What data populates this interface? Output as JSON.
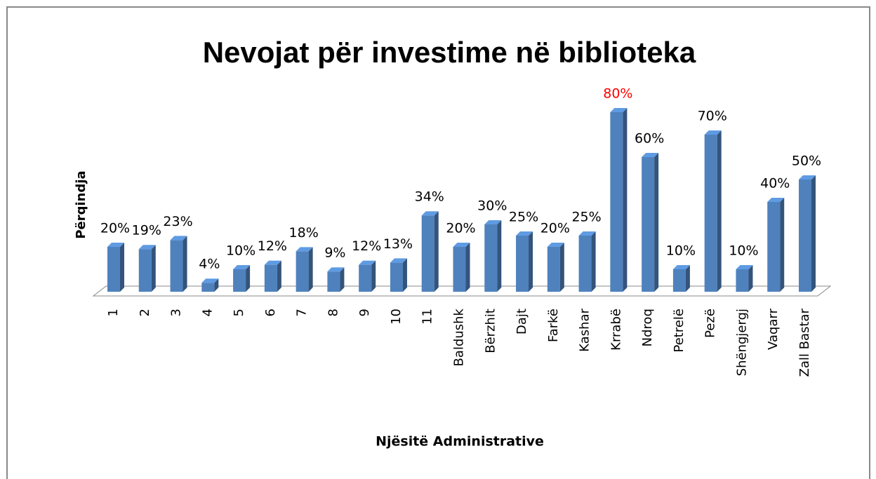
{
  "chart_data": {
    "type": "bar",
    "title": "Nevojat për investime në biblioteka",
    "y_label": "Përqindja",
    "x_label": "Njësitë Administrative",
    "categories": [
      "1",
      "2",
      "3",
      "4",
      "5",
      "6",
      "7",
      "8",
      "9",
      "10",
      "11",
      "Baldushk",
      "Bërzhit",
      "Dajt",
      "Farkë",
      "Kashar",
      "Krrabë",
      "Ndroq",
      "Petrelë",
      "Pezë",
      "Shëngjergj",
      "Vaqarr",
      "Zall Bastar"
    ],
    "values": [
      20,
      19,
      23,
      4,
      10,
      12,
      18,
      9,
      12,
      13,
      34,
      20,
      30,
      25,
      20,
      25,
      80,
      60,
      10,
      70,
      10,
      40,
      50
    ],
    "value_labels": [
      "20%",
      "19%",
      "23%",
      "4%",
      "10%",
      "12%",
      "18%",
      "9%",
      "12%",
      "13%",
      "34%",
      "20%",
      "30%",
      "25%",
      "20%",
      "25%",
      "80%",
      "60%",
      "10%",
      "70%",
      "10%",
      "40%",
      "50%"
    ],
    "value_label_colors": [
      "#000000",
      "#000000",
      "#000000",
      "#000000",
      "#000000",
      "#000000",
      "#000000",
      "#000000",
      "#000000",
      "#000000",
      "#000000",
      "#000000",
      "#000000",
      "#000000",
      "#000000",
      "#000000",
      "#ff0000",
      "#000000",
      "#000000",
      "#000000",
      "#000000",
      "#000000",
      "#000000"
    ],
    "color": "#4f81bd"
  }
}
